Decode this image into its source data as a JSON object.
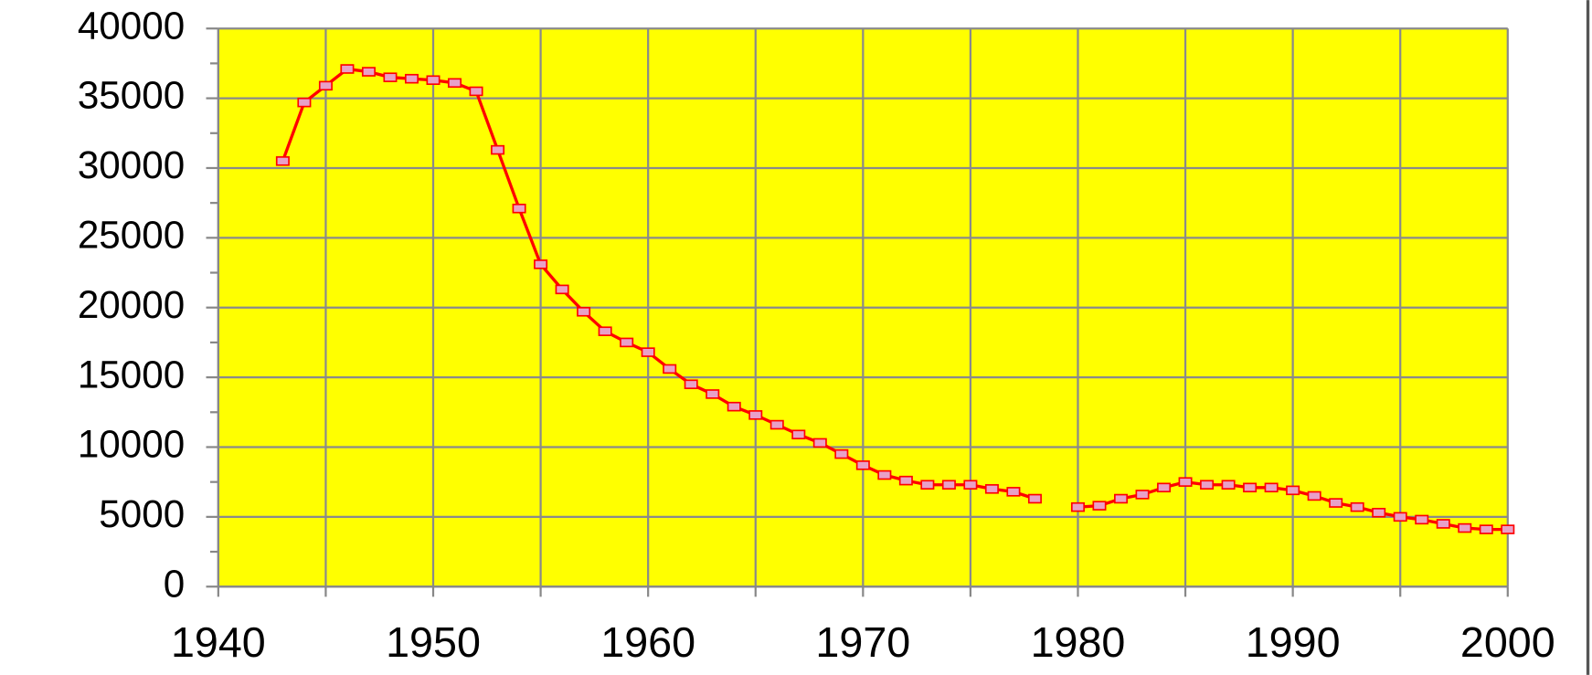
{
  "chart_data": {
    "type": "line",
    "x": [
      1943,
      1944,
      1945,
      1946,
      1947,
      1948,
      1949,
      1950,
      1951,
      1952,
      1953,
      1954,
      1955,
      1956,
      1957,
      1958,
      1959,
      1960,
      1961,
      1962,
      1963,
      1964,
      1965,
      1966,
      1967,
      1968,
      1969,
      1970,
      1971,
      1972,
      1973,
      1974,
      1975,
      1976,
      1977,
      1978,
      1979,
      1980,
      1981,
      1982,
      1983,
      1984,
      1985,
      1986,
      1987,
      1988,
      1989,
      1990,
      1991,
      1992,
      1993,
      1994,
      1995,
      1996,
      1997,
      1998,
      1999,
      2000
    ],
    "series": [
      {
        "color": "#ff0000",
        "marker_color": "#e8a0c8",
        "values": [
          30500,
          34700,
          35900,
          37100,
          36900,
          36500,
          36400,
          36300,
          36100,
          35500,
          31300,
          27100,
          23100,
          21300,
          19700,
          18300,
          17500,
          16800,
          15600,
          14500,
          13800,
          12900,
          12300,
          11600,
          10900,
          10300,
          9500,
          8700,
          8000,
          7600,
          7300,
          7300,
          7300,
          7000,
          6800,
          6300,
          null,
          5700,
          5800,
          6300,
          6600,
          7100,
          7500,
          7300,
          7300,
          7100,
          7100,
          6900,
          6500,
          6000,
          5700,
          5300,
          5000,
          4800,
          4500,
          4200,
          4100,
          4100
        ]
      }
    ],
    "xlim": [
      1940,
      2000
    ],
    "xticks": [
      1940,
      1950,
      1960,
      1970,
      1980,
      1990,
      2000
    ],
    "ylim": [
      0,
      40000
    ],
    "yticks": [
      0,
      5000,
      10000,
      15000,
      20000,
      25000,
      30000,
      35000,
      40000
    ],
    "grid": true,
    "background": "#ffff00"
  }
}
